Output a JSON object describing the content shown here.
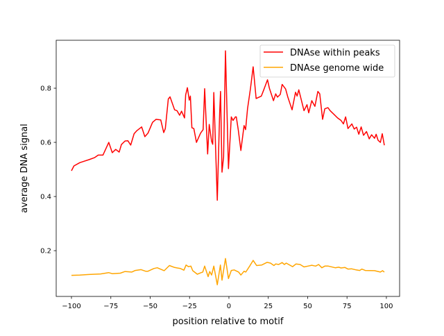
{
  "chart_data": {
    "type": "line",
    "title": "",
    "xlabel": "position relative to motif",
    "ylabel": "average DNA signal",
    "xlim": [
      -109.7,
      108.4
    ],
    "ylim": [
      0.031,
      0.977
    ],
    "xticks": [
      -100,
      -75,
      -50,
      -25,
      0,
      25,
      50,
      75,
      100
    ],
    "yticks": [
      0.2,
      0.4,
      0.6,
      0.8
    ],
    "grid": false,
    "legend_position": "top-right",
    "series": [
      {
        "name": "DNAse within peaks",
        "color": "#ff0000",
        "points": [
          [
            -100,
            0.495
          ],
          [
            -98.4,
            0.513
          ],
          [
            -94.7,
            0.525
          ],
          [
            -92.2,
            0.53
          ],
          [
            -88.9,
            0.536
          ],
          [
            -85.2,
            0.544
          ],
          [
            -83,
            0.553
          ],
          [
            -80,
            0.553
          ],
          [
            -76.3,
            0.6
          ],
          [
            -74.1,
            0.562
          ],
          [
            -71.9,
            0.574
          ],
          [
            -69.7,
            0.564
          ],
          [
            -68.3,
            0.592
          ],
          [
            -66,
            0.605
          ],
          [
            -64.2,
            0.606
          ],
          [
            -62.4,
            0.59
          ],
          [
            -60.2,
            0.632
          ],
          [
            -58.5,
            0.643
          ],
          [
            -55.4,
            0.657
          ],
          [
            -53.4,
            0.621
          ],
          [
            -51.4,
            0.634
          ],
          [
            -48.5,
            0.674
          ],
          [
            -46.3,
            0.685
          ],
          [
            -43.3,
            0.683
          ],
          [
            -41.4,
            0.636
          ],
          [
            -40.4,
            0.651
          ],
          [
            -38.5,
            0.76
          ],
          [
            -37.4,
            0.768
          ],
          [
            -34.5,
            0.72
          ],
          [
            -33,
            0.717
          ],
          [
            -31.3,
            0.7
          ],
          [
            -30.1,
            0.715
          ],
          [
            -28.2,
            0.69
          ],
          [
            -27.5,
            0.775
          ],
          [
            -26.4,
            0.802
          ],
          [
            -25.2,
            0.756
          ],
          [
            -24.5,
            0.771
          ],
          [
            -23.5,
            0.654
          ],
          [
            -22.3,
            0.651
          ],
          [
            -20.6,
            0.6
          ],
          [
            -18,
            0.634
          ],
          [
            -16.4,
            0.647
          ],
          [
            -15.4,
            0.798
          ],
          [
            -13.5,
            0.557
          ],
          [
            -12.5,
            0.666
          ],
          [
            -11,
            0.604
          ],
          [
            -10.3,
            0.593
          ],
          [
            -9.6,
            0.784
          ],
          [
            -7.4,
            0.386
          ],
          [
            -5.9,
            0.707
          ],
          [
            -5.3,
            0.788
          ],
          [
            -4.4,
            0.49
          ],
          [
            -3.4,
            0.546
          ],
          [
            -2.2,
            0.938
          ],
          [
            -0.3,
            0.503
          ],
          [
            1.5,
            0.694
          ],
          [
            2.6,
            0.681
          ],
          [
            4.1,
            0.694
          ],
          [
            4.7,
            0.694
          ],
          [
            5.9,
            0.647
          ],
          [
            7.6,
            0.57
          ],
          [
            9.6,
            0.662
          ],
          [
            10.6,
            0.647
          ],
          [
            11.8,
            0.724
          ],
          [
            13.7,
            0.8
          ],
          [
            15.4,
            0.879
          ],
          [
            17.3,
            0.762
          ],
          [
            20.6,
            0.771
          ],
          [
            22,
            0.792
          ],
          [
            24.5,
            0.831
          ],
          [
            25.7,
            0.8
          ],
          [
            28.3,
            0.754
          ],
          [
            29.7,
            0.779
          ],
          [
            30.8,
            0.767
          ],
          [
            32.6,
            0.777
          ],
          [
            33.8,
            0.814
          ],
          [
            36,
            0.797
          ],
          [
            37.4,
            0.767
          ],
          [
            40.1,
            0.72
          ],
          [
            42.3,
            0.785
          ],
          [
            43.3,
            0.771
          ],
          [
            44.4,
            0.794
          ],
          [
            47.7,
            0.717
          ],
          [
            49.6,
            0.739
          ],
          [
            50.7,
            0.709
          ],
          [
            52.6,
            0.754
          ],
          [
            54.6,
            0.733
          ],
          [
            56.5,
            0.788
          ],
          [
            57.7,
            0.779
          ],
          [
            59.5,
            0.685
          ],
          [
            60.9,
            0.724
          ],
          [
            62.9,
            0.728
          ],
          [
            64.3,
            0.717
          ],
          [
            66.8,
            0.703
          ],
          [
            69,
            0.69
          ],
          [
            71.2,
            0.681
          ],
          [
            72.7,
            0.668
          ],
          [
            74.1,
            0.694
          ],
          [
            75.6,
            0.651
          ],
          [
            78.1,
            0.668
          ],
          [
            79.6,
            0.649
          ],
          [
            81.1,
            0.656
          ],
          [
            82.5,
            0.63
          ],
          [
            84,
            0.657
          ],
          [
            85.5,
            0.626
          ],
          [
            87.4,
            0.64
          ],
          [
            89.1,
            0.613
          ],
          [
            90.6,
            0.628
          ],
          [
            92.5,
            0.615
          ],
          [
            93.5,
            0.63
          ],
          [
            94.7,
            0.608
          ],
          [
            96.2,
            0.6
          ],
          [
            97.4,
            0.632
          ],
          [
            98.7,
            0.589
          ]
        ]
      },
      {
        "name": "DNAse genome wide",
        "color": "#ffa500",
        "points": [
          [
            -100,
            0.109
          ],
          [
            -94.7,
            0.11
          ],
          [
            -88.9,
            0.112
          ],
          [
            -81.5,
            0.114
          ],
          [
            -76.4,
            0.119
          ],
          [
            -74.1,
            0.115
          ],
          [
            -69,
            0.117
          ],
          [
            -66,
            0.123
          ],
          [
            -61.7,
            0.121
          ],
          [
            -59.5,
            0.127
          ],
          [
            -55.8,
            0.13
          ],
          [
            -52.9,
            0.124
          ],
          [
            -51.4,
            0.124
          ],
          [
            -47.7,
            0.134
          ],
          [
            -45.5,
            0.137
          ],
          [
            -41.1,
            0.126
          ],
          [
            -37.8,
            0.145
          ],
          [
            -34.5,
            0.138
          ],
          [
            -30.8,
            0.134
          ],
          [
            -28.6,
            0.128
          ],
          [
            -27.2,
            0.147
          ],
          [
            -25.7,
            0.141
          ],
          [
            -24.2,
            0.143
          ],
          [
            -23,
            0.126
          ],
          [
            -20.1,
            0.113
          ],
          [
            -17.6,
            0.119
          ],
          [
            -16.6,
            0.121
          ],
          [
            -15.4,
            0.143
          ],
          [
            -13.2,
            0.104
          ],
          [
            -12.2,
            0.123
          ],
          [
            -11,
            0.11
          ],
          [
            -9.6,
            0.143
          ],
          [
            -7.4,
            0.074
          ],
          [
            -5.4,
            0.147
          ],
          [
            -4.4,
            0.091
          ],
          [
            -2.2,
            0.171
          ],
          [
            -0.3,
            0.097
          ],
          [
            1.5,
            0.127
          ],
          [
            3.3,
            0.129
          ],
          [
            6.2,
            0.121
          ],
          [
            7.6,
            0.11
          ],
          [
            9.6,
            0.124
          ],
          [
            10.7,
            0.121
          ],
          [
            13.2,
            0.143
          ],
          [
            15.4,
            0.164
          ],
          [
            17.6,
            0.145
          ],
          [
            20.8,
            0.147
          ],
          [
            24.2,
            0.157
          ],
          [
            26.4,
            0.154
          ],
          [
            28.6,
            0.145
          ],
          [
            29.7,
            0.151
          ],
          [
            31.6,
            0.149
          ],
          [
            33.8,
            0.156
          ],
          [
            35.2,
            0.149
          ],
          [
            36.4,
            0.154
          ],
          [
            40.4,
            0.141
          ],
          [
            42.6,
            0.151
          ],
          [
            45.2,
            0.149
          ],
          [
            47.7,
            0.14
          ],
          [
            50.2,
            0.143
          ],
          [
            52.6,
            0.146
          ],
          [
            55.1,
            0.143
          ],
          [
            57,
            0.149
          ],
          [
            59,
            0.137
          ],
          [
            60.9,
            0.143
          ],
          [
            63.1,
            0.143
          ],
          [
            67.5,
            0.137
          ],
          [
            69.7,
            0.139
          ],
          [
            71.2,
            0.136
          ],
          [
            73.7,
            0.138
          ],
          [
            75.6,
            0.132
          ],
          [
            77.8,
            0.133
          ],
          [
            80.8,
            0.129
          ],
          [
            83,
            0.127
          ],
          [
            84.4,
            0.132
          ],
          [
            86.6,
            0.127
          ],
          [
            92.5,
            0.126
          ],
          [
            96.2,
            0.121
          ],
          [
            97.6,
            0.126
          ],
          [
            98.7,
            0.121
          ]
        ]
      }
    ]
  }
}
